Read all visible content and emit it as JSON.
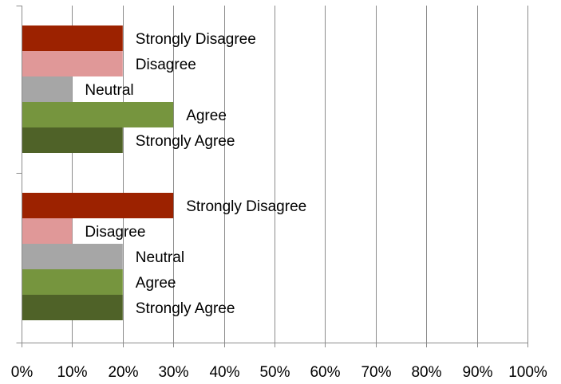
{
  "chart_data": {
    "type": "bar",
    "orientation": "horizontal",
    "xlim": [
      0,
      100
    ],
    "x_tick_labels": [
      "0%",
      "10%",
      "20%",
      "30%",
      "40%",
      "50%",
      "60%",
      "70%",
      "80%",
      "90%",
      "100%"
    ],
    "grid": "vertical",
    "legend": "none",
    "groups": [
      {
        "bars": [
          {
            "label": "Strongly Disagree",
            "value": 20,
            "color": "#9c2200"
          },
          {
            "label": "Disagree",
            "value": 20,
            "color": "#e09898"
          },
          {
            "label": "Neutral",
            "value": 10,
            "color": "#a6a6a6"
          },
          {
            "label": "Agree",
            "value": 30,
            "color": "#76953e"
          },
          {
            "label": "Strongly Agree",
            "value": 20,
            "color": "#4f6228"
          }
        ]
      },
      {
        "bars": [
          {
            "label": "Strongly Disagree",
            "value": 30,
            "color": "#9c2200"
          },
          {
            "label": "Disagree",
            "value": 10,
            "color": "#e09898"
          },
          {
            "label": "Neutral",
            "value": 20,
            "color": "#a6a6a6"
          },
          {
            "label": "Agree",
            "value": 20,
            "color": "#76953e"
          },
          {
            "label": "Strongly Agree",
            "value": 20,
            "color": "#4f6228"
          }
        ]
      }
    ]
  }
}
